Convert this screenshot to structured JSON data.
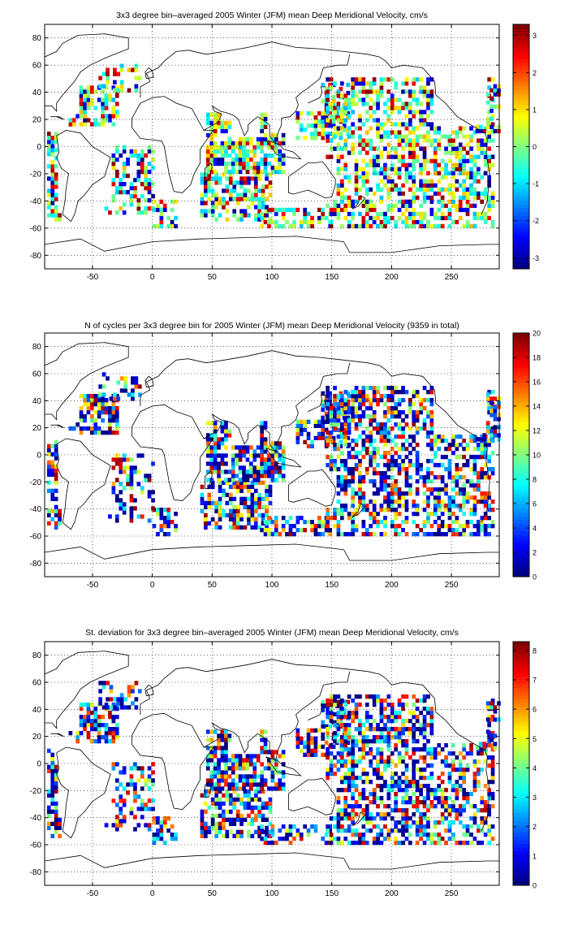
{
  "chart_data": [
    {
      "type": "heatmap",
      "title": "3x3 degree bin–averaged 2005 Winter (JFM) mean Deep Meridional Velocity, cm/s",
      "xlabel": "",
      "ylabel": "",
      "xlim": [
        -90,
        290
      ],
      "ylim": [
        -90,
        90
      ],
      "x_ticks": [
        -50,
        0,
        50,
        100,
        150,
        200,
        250
      ],
      "y_ticks": [
        -80,
        -60,
        -40,
        -20,
        0,
        20,
        40,
        60,
        80
      ],
      "grid": true,
      "colorbar": {
        "min": -3.3,
        "max": 3.3,
        "ticks": [
          -3,
          -2,
          -1,
          0,
          1,
          2,
          3
        ]
      },
      "cell_size_deg": 3,
      "regions": [
        {
          "lon": [
            -88,
            -68
          ],
          "lat": [
            -55,
            10
          ],
          "density": 0.7
        },
        {
          "lon": [
            -70,
            -30
          ],
          "lat": [
            15,
            45
          ],
          "density": 0.65
        },
        {
          "lon": [
            -45,
            -5
          ],
          "lat": [
            40,
            72
          ],
          "density": 0.35
        },
        {
          "lon": [
            -40,
            0
          ],
          "lat": [
            -50,
            0
          ],
          "density": 0.4
        },
        {
          "lon": [
            0,
            20
          ],
          "lat": [
            -60,
            -40
          ],
          "density": 0.5
        },
        {
          "lon": [
            40,
            100
          ],
          "lat": [
            -55,
            -20
          ],
          "density": 0.6
        },
        {
          "lon": [
            45,
            110
          ],
          "lat": [
            -20,
            25
          ],
          "density": 0.7
        },
        {
          "lon": [
            90,
            150
          ],
          "lat": [
            -60,
            -45
          ],
          "density": 0.5
        },
        {
          "lon": [
            120,
            165
          ],
          "lat": [
            5,
            45
          ],
          "density": 0.55
        },
        {
          "lon": [
            145,
            285
          ],
          "lat": [
            -60,
            50
          ],
          "density": 0.5
        },
        {
          "lon": [
            270,
            290
          ],
          "lat": [
            10,
            45
          ],
          "density": 0.5
        }
      ]
    },
    {
      "type": "heatmap",
      "title": "N of cycles per 3x3 degree bin for 2005 Winter (JFM) mean Deep Meridional Velocity (9359 in total)",
      "xlabel": "",
      "ylabel": "",
      "xlim": [
        -90,
        290
      ],
      "ylim": [
        -90,
        90
      ],
      "x_ticks": [
        -50,
        0,
        50,
        100,
        150,
        200,
        250
      ],
      "y_ticks": [
        -80,
        -60,
        -40,
        -20,
        0,
        20,
        40,
        60,
        80
      ],
      "grid": true,
      "colorbar": {
        "min": 0,
        "max": 20,
        "ticks": [
          0,
          2,
          4,
          6,
          8,
          10,
          12,
          14,
          16,
          18,
          20
        ]
      },
      "cell_size_deg": 3,
      "regions": [
        {
          "lon": [
            -88,
            -68
          ],
          "lat": [
            -55,
            10
          ],
          "density": 0.65
        },
        {
          "lon": [
            -70,
            -30
          ],
          "lat": [
            15,
            45
          ],
          "density": 0.65
        },
        {
          "lon": [
            -45,
            -5
          ],
          "lat": [
            40,
            72
          ],
          "density": 0.35
        },
        {
          "lon": [
            -40,
            0
          ],
          "lat": [
            -50,
            0
          ],
          "density": 0.4
        },
        {
          "lon": [
            0,
            20
          ],
          "lat": [
            -60,
            -40
          ],
          "density": 0.5
        },
        {
          "lon": [
            40,
            100
          ],
          "lat": [
            -55,
            -20
          ],
          "density": 0.6
        },
        {
          "lon": [
            45,
            110
          ],
          "lat": [
            -20,
            25
          ],
          "density": 0.75
        },
        {
          "lon": [
            90,
            150
          ],
          "lat": [
            -60,
            -45
          ],
          "density": 0.5
        },
        {
          "lon": [
            120,
            165
          ],
          "lat": [
            5,
            45
          ],
          "density": 0.55
        },
        {
          "lon": [
            145,
            285
          ],
          "lat": [
            -60,
            50
          ],
          "density": 0.55
        },
        {
          "lon": [
            270,
            290
          ],
          "lat": [
            10,
            45
          ],
          "density": 0.5
        }
      ]
    },
    {
      "type": "heatmap",
      "title": "St. deviation for 3x3 degree bin–averaged 2005 Winter (JFM) mean Deep Meridional Velocity, cm/s",
      "xlabel": "",
      "ylabel": "",
      "xlim": [
        -90,
        290
      ],
      "ylim": [
        -90,
        90
      ],
      "x_ticks": [
        -50,
        0,
        50,
        100,
        150,
        200,
        250
      ],
      "y_ticks": [
        -80,
        -60,
        -40,
        -20,
        0,
        20,
        40,
        60,
        80
      ],
      "grid": true,
      "colorbar": {
        "min": 0,
        "max": 8.3,
        "ticks": [
          0,
          1,
          2,
          3,
          4,
          5,
          6,
          7,
          8
        ]
      },
      "cell_size_deg": 3,
      "regions": [
        {
          "lon": [
            -88,
            -68
          ],
          "lat": [
            -55,
            10
          ],
          "density": 0.65
        },
        {
          "lon": [
            -70,
            -30
          ],
          "lat": [
            15,
            45
          ],
          "density": 0.65
        },
        {
          "lon": [
            -45,
            -5
          ],
          "lat": [
            40,
            72
          ],
          "density": 0.35
        },
        {
          "lon": [
            -40,
            0
          ],
          "lat": [
            -50,
            0
          ],
          "density": 0.4
        },
        {
          "lon": [
            0,
            20
          ],
          "lat": [
            -60,
            -40
          ],
          "density": 0.5
        },
        {
          "lon": [
            40,
            100
          ],
          "lat": [
            -55,
            -20
          ],
          "density": 0.6
        },
        {
          "lon": [
            45,
            110
          ],
          "lat": [
            -20,
            25
          ],
          "density": 0.7
        },
        {
          "lon": [
            90,
            150
          ],
          "lat": [
            -60,
            -45
          ],
          "density": 0.5
        },
        {
          "lon": [
            120,
            165
          ],
          "lat": [
            5,
            45
          ],
          "density": 0.55
        },
        {
          "lon": [
            145,
            285
          ],
          "lat": [
            -60,
            50
          ],
          "density": 0.55
        },
        {
          "lon": [
            270,
            290
          ],
          "lat": [
            10,
            45
          ],
          "density": 0.5
        }
      ]
    }
  ]
}
